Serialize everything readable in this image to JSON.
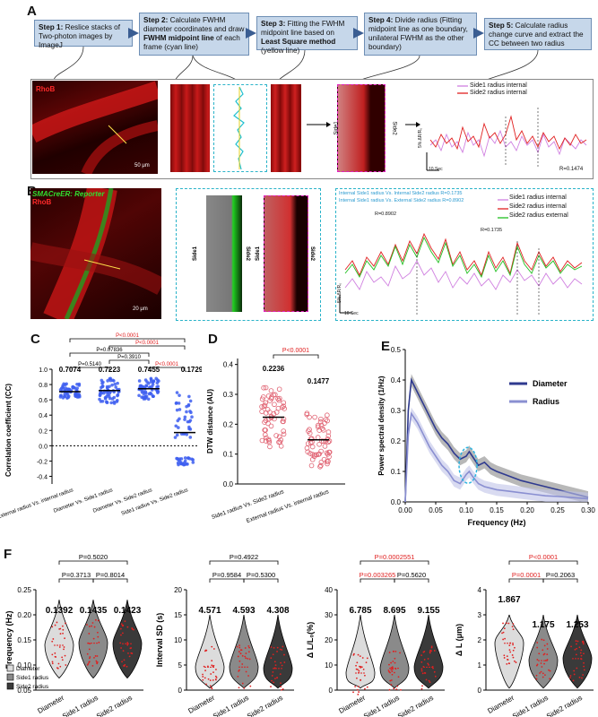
{
  "panel_labels": [
    "A",
    "B",
    "C",
    "D",
    "E",
    "F"
  ],
  "steps": [
    {
      "lead": "Step 1:",
      "text": " Reslice stacks of Two-photon images by ImageJ"
    },
    {
      "lead": "Step 2:",
      "text": " Calculate FWHM diameter coordinates and draw ",
      "bold": "FWHM midpoint line",
      "tail": " of each frame (cyan line)"
    },
    {
      "lead": "Step 3:",
      "text": " Fitting the FWHM midpoint line based on ",
      "bold": "Least Square method",
      "tail": " (yellow line)"
    },
    {
      "lead": "Step 4:",
      "text": " Divide radius (Fitting midpoint line as one boundary, unilateral FWHM as the other boundary)"
    },
    {
      "lead": "Step 5:",
      "text": " Calculate radius change curve and extract the CC between two radius"
    }
  ],
  "panelA": {
    "stain": "RhoB",
    "scale": "50 μm",
    "side1": "Side1",
    "side2": "Side2",
    "legend": [
      "Side1 radius internal",
      "Side2 radius internal"
    ],
    "corr": "R=0.1474",
    "ylab": "5% ΔR/R₀",
    "xlab": "10 Sec"
  },
  "panelB": {
    "stain1": "SMACreER: Reporter",
    "stain2": "RhoB",
    "scale": "20 μm",
    "side1": "Side1",
    "side2": "Side2",
    "legend": [
      "Side1 radius internal",
      "Side2 radius internal",
      "Side2 radius external"
    ],
    "note1": "Internal Side1 radius Vs. Internal Side2 radius R=0.1735",
    "note2": "Internal Side1 radius Vs. External Side2 radius R=0.8902",
    "r1": "R=0.8902",
    "r2": "R=0.1735",
    "ylab": "5% ΔR/R₀",
    "xlab": "10 Sec"
  },
  "panelC": {
    "ylabel": "Correlation coefficient (CC)",
    "yticks": [
      "1.0",
      "0.8",
      "0.6",
      "0.4",
      "0.2",
      "0.0",
      "-0.2",
      "-0.4"
    ],
    "categories": [
      "External radius Vs. internal radius",
      "Diameter Vs. Side1 radius",
      "Diameter Vs. Side2 radius",
      "Side1 radius Vs. Side2 radius"
    ],
    "means": [
      "0.7074",
      "0.7223",
      "0.7455",
      "0.1729"
    ],
    "pvals": [
      "P=0.5140",
      "P=0.3910",
      "P=0.07836",
      "P<0.0001",
      "P<0.0001",
      "P<0.0001"
    ]
  },
  "panelD": {
    "ylabel": "DTW distance (AU)",
    "yticks": [
      "0.4",
      "0.3",
      "0.2",
      "0.1",
      "0.0"
    ],
    "categories": [
      "Side1 radius Vs. Side2 radius",
      "External radius Vs. internal radius"
    ],
    "means": [
      "0.2236",
      "0.1477"
    ],
    "pval": "P<0.0001"
  },
  "chart_data": {
    "type": "line",
    "title": "",
    "xlabel": "Frequency (Hz)",
    "ylabel": "Power spectral density (1/Hz)",
    "xlim": [
      0,
      0.3
    ],
    "ylim": [
      0,
      0.5
    ],
    "xticks": [
      "0.00",
      "0.05",
      "0.10",
      "0.15",
      "0.20",
      "0.25",
      "0.30"
    ],
    "yticks": [
      "0.0",
      "0.1",
      "0.2",
      "0.3",
      "0.4",
      "0.5"
    ],
    "series": [
      {
        "name": "Diameter",
        "color": "#2f3a8f",
        "x": [
          0,
          0.005,
          0.01,
          0.02,
          0.03,
          0.04,
          0.05,
          0.06,
          0.07,
          0.08,
          0.09,
          0.1,
          0.105,
          0.11,
          0.12,
          0.13,
          0.14,
          0.15,
          0.17,
          0.19,
          0.21,
          0.23,
          0.25,
          0.27,
          0.29,
          0.3
        ],
        "values": [
          0.0,
          0.3,
          0.4,
          0.36,
          0.32,
          0.28,
          0.24,
          0.21,
          0.19,
          0.16,
          0.14,
          0.15,
          0.165,
          0.15,
          0.12,
          0.13,
          0.11,
          0.1,
          0.085,
          0.07,
          0.06,
          0.05,
          0.04,
          0.03,
          0.02,
          0.015
        ]
      },
      {
        "name": "Radius",
        "color": "#8a8fd1",
        "x": [
          0,
          0.005,
          0.01,
          0.02,
          0.03,
          0.04,
          0.05,
          0.06,
          0.07,
          0.08,
          0.09,
          0.1,
          0.105,
          0.11,
          0.12,
          0.13,
          0.14,
          0.15,
          0.17,
          0.19,
          0.21,
          0.23,
          0.25,
          0.27,
          0.29,
          0.3
        ],
        "values": [
          0.0,
          0.22,
          0.29,
          0.26,
          0.22,
          0.18,
          0.15,
          0.12,
          0.1,
          0.07,
          0.06,
          0.09,
          0.1,
          0.085,
          0.06,
          0.05,
          0.045,
          0.04,
          0.035,
          0.03,
          0.025,
          0.02,
          0.018,
          0.015,
          0.012,
          0.01
        ]
      }
    ]
  },
  "panelF": [
    {
      "ylabel": "Frequency (Hz)",
      "yticks": [
        "0.25",
        "0.20",
        "0.15",
        "0.10",
        "0.05"
      ],
      "means": [
        "0.1392",
        "0.1435",
        "0.1423"
      ],
      "p": [
        "P=0.5020",
        "P=0.3713",
        "P=0.8014"
      ],
      "red": [
        false,
        false,
        false
      ],
      "legend": [
        "Diameter",
        "Side1 radius",
        "Side2 radius"
      ]
    },
    {
      "ylabel": "Interval SD (s)",
      "yticks": [
        "20",
        "15",
        "10",
        "5",
        "0"
      ],
      "means": [
        "4.571",
        "4.593",
        "4.308"
      ],
      "p": [
        "P=0.4922",
        "P=0.9584",
        "P=0.5300"
      ],
      "red": [
        false,
        false,
        false
      ]
    },
    {
      "ylabel": "Δ L/L₀(%)",
      "yticks": [
        "40",
        "30",
        "20",
        "10",
        "0"
      ],
      "means": [
        "6.785",
        "8.695",
        "9.155"
      ],
      "p": [
        "P=0.0002551",
        "P=0.003265",
        "P=0.5620"
      ],
      "red": [
        true,
        true,
        false
      ]
    },
    {
      "ylabel": "Δ L (μm)",
      "yticks": [
        "4",
        "3",
        "2",
        "1",
        "0"
      ],
      "means": [
        "1.867",
        "1.175",
        "1.253"
      ],
      "p": [
        "P<0.0001",
        "P=0.0001",
        "P=0.2063"
      ],
      "red": [
        true,
        true,
        false
      ]
    }
  ],
  "xcats": [
    "Diameter",
    "Side1 radius",
    "Side2 radius"
  ]
}
